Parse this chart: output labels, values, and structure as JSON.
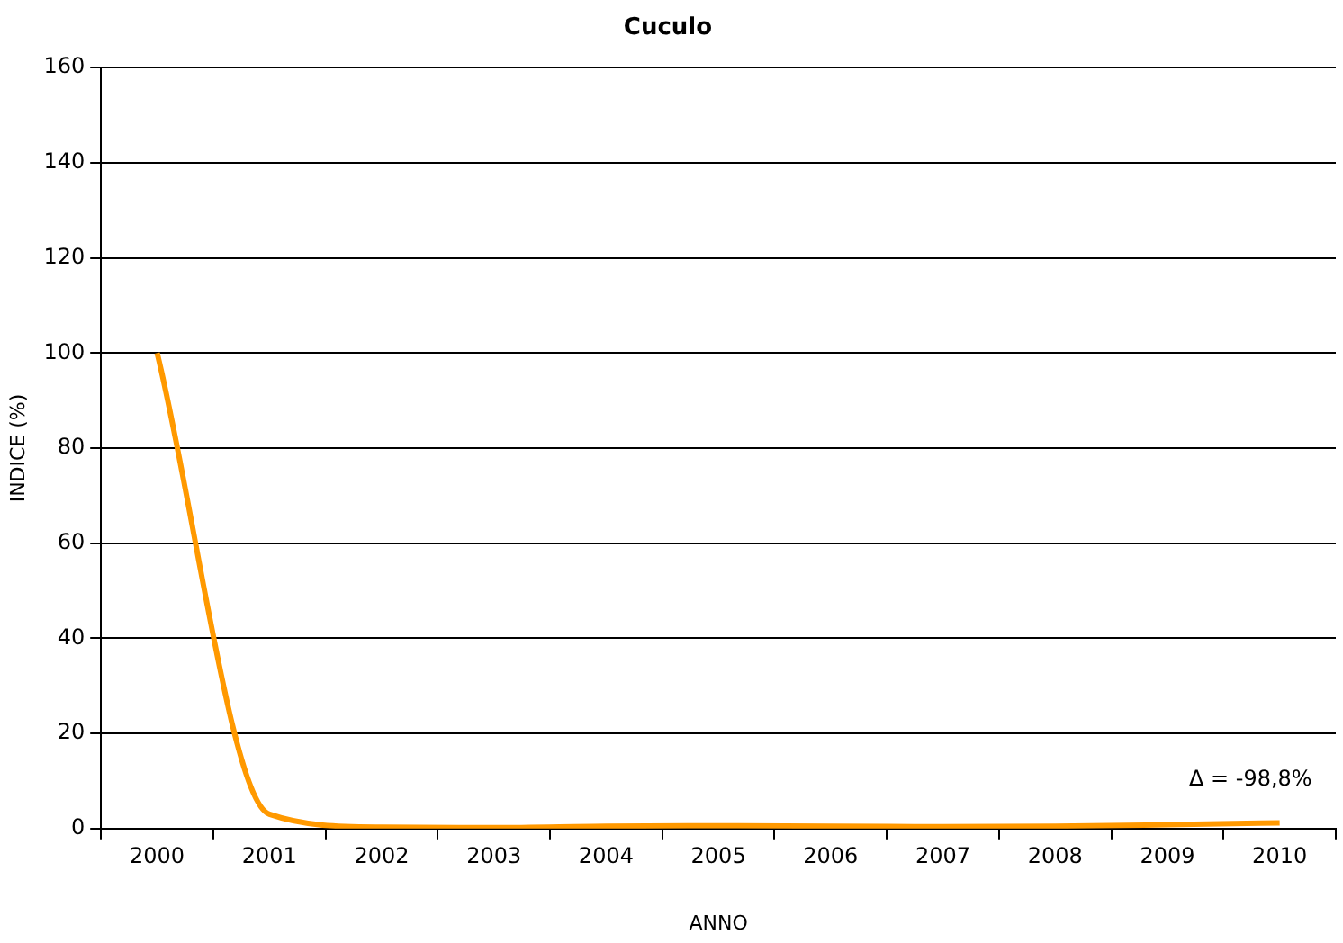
{
  "chart_data": {
    "type": "line",
    "title": "Cuculo",
    "xlabel": "ANNO",
    "ylabel": "INDICE (%)",
    "categories": [
      "2000",
      "2001",
      "2002",
      "2003",
      "2004",
      "2005",
      "2006",
      "2007",
      "2008",
      "2009",
      "2010"
    ],
    "series": [
      {
        "color": "#ff9900",
        "values": [
          100,
          3,
          0.3,
          0.2,
          0.5,
          0.6,
          0.5,
          0.4,
          0.5,
          0.8,
          1.2
        ]
      }
    ],
    "ylim": [
      0,
      160
    ],
    "yticks": [
      0,
      20,
      40,
      60,
      80,
      100,
      120,
      140,
      160
    ],
    "grid": "y",
    "legend": false,
    "marker": "none",
    "annotations": [
      {
        "text": "Δ = -98,8%",
        "x": "2010",
        "y": 1.2
      }
    ]
  }
}
